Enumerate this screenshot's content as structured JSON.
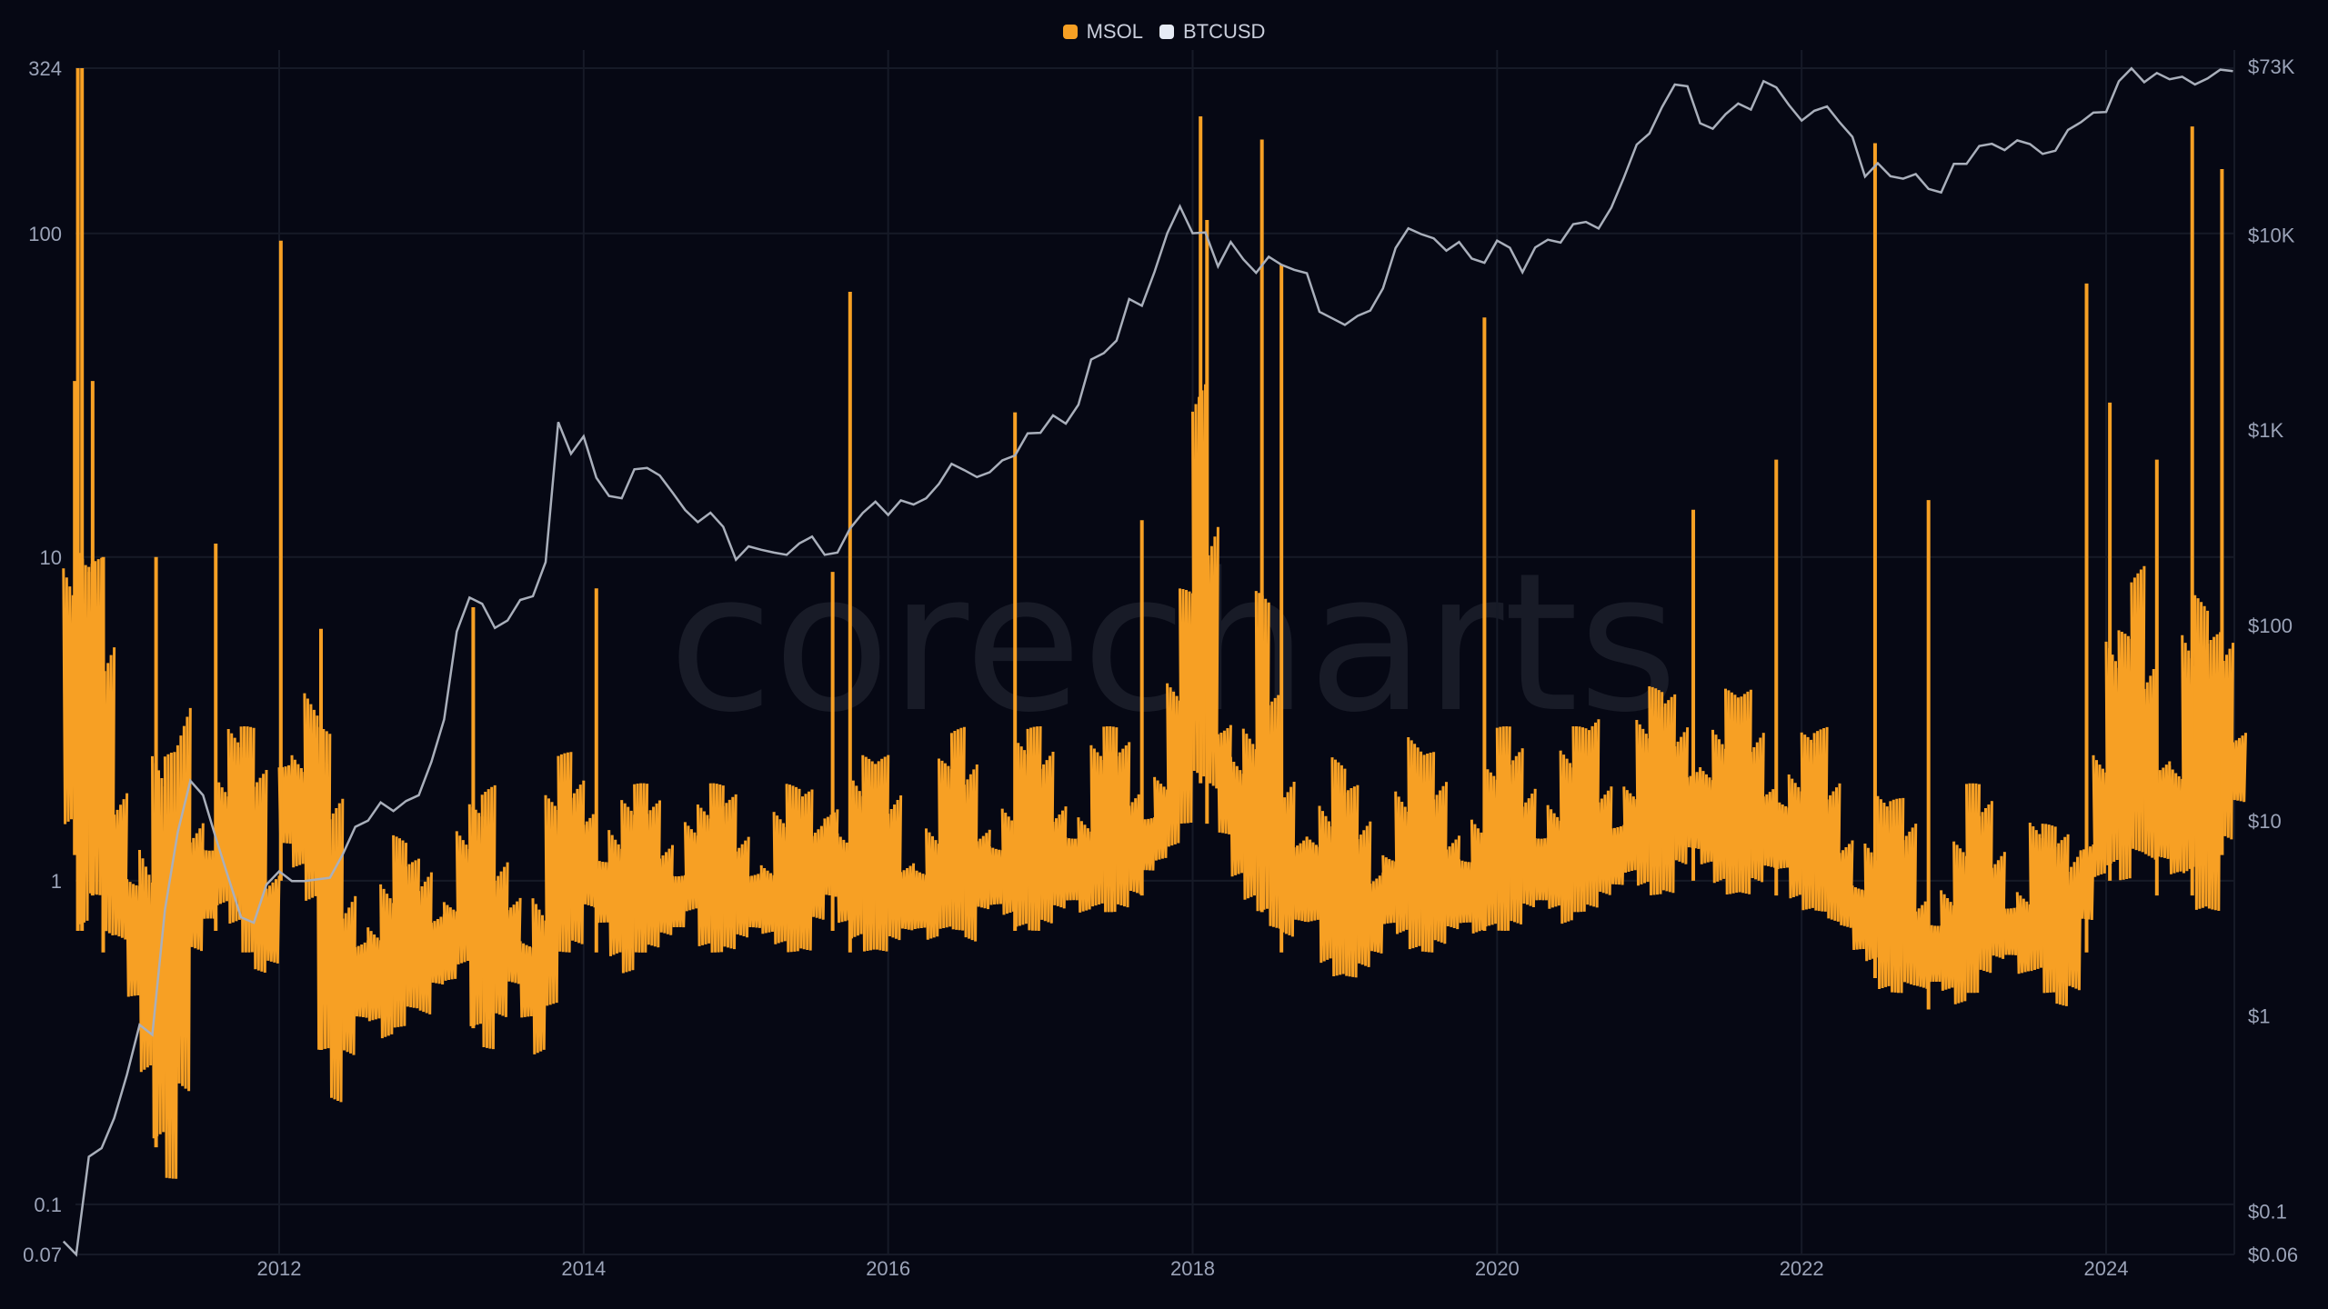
{
  "watermark": "corecharts",
  "chart_data": {
    "type": "line",
    "legend_position": "top-center",
    "grid": true,
    "colors": {
      "background": "#060814",
      "MSOL": "#f7a024",
      "BTCUSD": "#a9afbb",
      "grid": "#161a27"
    },
    "x_ticks": [
      "2012",
      "2014",
      "2016",
      "2018",
      "2020",
      "2022",
      "2024"
    ],
    "left_axis": {
      "scale": "log",
      "range": [
        0.07,
        324
      ],
      "ticks": [
        "324",
        "100",
        "10",
        "1",
        "0.1",
        "0.07"
      ],
      "tick_values": [
        324,
        100,
        10,
        1,
        0.1,
        0.07
      ]
    },
    "right_axis": {
      "scale": "log",
      "range": [
        0.06,
        73000
      ],
      "ticks": [
        "$73K",
        "$10K",
        "$1K",
        "$100",
        "$10",
        "$1",
        "$0.1",
        "$0.06"
      ],
      "tick_values": [
        73000,
        10000,
        1000,
        100,
        10,
        1,
        0.1,
        0.06
      ]
    },
    "series": [
      {
        "name": "MSOL",
        "axis": "left",
        "start_month": "2010-08",
        "monthly_high": [
          20,
          12,
          10,
          8,
          5,
          4,
          3,
          3,
          2.5,
          5,
          3,
          3,
          4,
          3.5,
          3,
          2.5,
          1.5,
          6,
          5,
          5,
          3,
          2,
          1.5,
          1.5,
          1.5,
          1.3,
          1.4,
          1.2,
          1.5,
          1.5,
          1.8,
          2,
          1.8,
          2,
          1.5,
          1.7,
          1.5,
          1.5,
          2,
          2.5,
          2.5,
          3,
          2.5,
          2.5,
          2,
          2,
          2,
          2,
          2,
          2.5,
          2,
          2,
          2,
          2,
          2,
          1.8,
          2,
          2,
          2,
          2,
          4,
          3,
          3,
          2.5,
          2.5,
          2.5,
          2,
          2,
          2,
          2.5,
          3,
          3,
          2.5,
          2.5,
          2.5,
          3,
          3,
          3,
          3,
          3,
          2.5,
          3,
          3,
          3,
          3,
          3,
          3.5,
          5,
          8,
          40,
          30,
          10,
          6,
          4,
          8,
          4,
          3,
          3,
          3,
          2.5,
          2.5,
          2,
          2,
          2,
          2.5,
          3,
          3,
          2.5,
          2.5,
          2.5,
          2.5,
          2.5,
          2.5,
          3,
          3,
          3.5,
          3,
          3,
          3,
          3,
          3.5,
          3,
          3,
          3.5,
          4,
          4,
          4,
          4.5,
          5,
          5,
          4,
          4,
          4,
          4,
          4,
          3.5,
          3,
          3,
          3,
          2.5,
          2.5,
          2,
          2,
          2,
          1.8,
          1.8,
          1.5,
          1.5,
          1.5,
          1.5,
          2,
          2,
          2,
          1.5,
          1.5,
          1.8,
          1.5,
          1.5,
          2,
          3,
          6,
          8,
          6,
          10,
          8,
          6,
          6,
          10,
          8,
          6,
          8,
          5
        ],
        "monthly_low": [
          1.2,
          0.7,
          0.9,
          0.6,
          0.5,
          0.3,
          0.2,
          0.15,
          0.12,
          0.2,
          0.5,
          0.6,
          0.7,
          0.7,
          0.6,
          0.5,
          0.5,
          1,
          0.9,
          0.8,
          0.3,
          0.2,
          0.25,
          0.3,
          0.3,
          0.3,
          0.35,
          0.4,
          0.35,
          0.4,
          0.4,
          0.5,
          0.35,
          0.3,
          0.35,
          0.4,
          0.3,
          0.25,
          0.4,
          0.6,
          0.6,
          0.7,
          0.6,
          0.5,
          0.5,
          0.6,
          0.6,
          0.6,
          0.6,
          0.7,
          0.6,
          0.6,
          0.6,
          0.6,
          0.6,
          0.6,
          0.6,
          0.6,
          0.6,
          0.7,
          0.7,
          0.6,
          0.6,
          0.6,
          0.6,
          0.6,
          0.6,
          0.6,
          0.6,
          0.7,
          0.7,
          0.6,
          0.7,
          0.7,
          0.7,
          0.7,
          0.7,
          0.7,
          0.7,
          0.7,
          0.7,
          0.8,
          0.8,
          0.8,
          0.8,
          0.9,
          1,
          1.2,
          1.5,
          2,
          1.5,
          1,
          0.8,
          0.8,
          0.8,
          0.7,
          0.6,
          0.6,
          0.6,
          0.5,
          0.5,
          0.5,
          0.5,
          0.5,
          0.6,
          0.6,
          0.6,
          0.6,
          0.6,
          0.6,
          0.6,
          0.6,
          0.7,
          0.7,
          0.7,
          0.7,
          0.7,
          0.7,
          0.7,
          0.8,
          0.8,
          0.8,
          0.8,
          0.9,
          0.9,
          0.9,
          0.9,
          1,
          1,
          0.9,
          0.9,
          0.9,
          0.9,
          0.9,
          0.9,
          0.9,
          0.8,
          0.8,
          0.8,
          0.7,
          0.6,
          0.5,
          0.5,
          0.45,
          0.45,
          0.45,
          0.4,
          0.4,
          0.4,
          0.4,
          0.45,
          0.5,
          0.5,
          0.5,
          0.45,
          0.5,
          0.45,
          0.4,
          0.4,
          0.6,
          0.8,
          1,
          1,
          1.2,
          1,
          0.9,
          0.8,
          0.9,
          0.8,
          0.8,
          1.2,
          1.5
        ],
        "spikes": [
          [
            "2010-08-28",
            35
          ],
          [
            "2010-09-05",
            324
          ],
          [
            "2010-09-15",
            324
          ],
          [
            "2010-10-10",
            35
          ],
          [
            "2010-11-05",
            10
          ],
          [
            "2011-03-10",
            10
          ],
          [
            "2011-08-01",
            11
          ],
          [
            "2012-01-05",
            95
          ],
          [
            "2012-04-10",
            6
          ],
          [
            "2013-04-10",
            7
          ],
          [
            "2014-02-01",
            8
          ],
          [
            "2015-08-20",
            9
          ],
          [
            "2015-10-01",
            66
          ],
          [
            "2016-11-01",
            28
          ],
          [
            "2017-09-01",
            13
          ],
          [
            "2018-01-20",
            230
          ],
          [
            "2018-02-05",
            110
          ],
          [
            "2018-06-15",
            195
          ],
          [
            "2018-08-01",
            80
          ],
          [
            "2019-12-01",
            55
          ],
          [
            "2021-04-15",
            14
          ],
          [
            "2021-11-01",
            20
          ],
          [
            "2022-06-25",
            190
          ],
          [
            "2022-11-01",
            15
          ],
          [
            "2023-11-15",
            70
          ],
          [
            "2024-01-10",
            30
          ],
          [
            "2024-05-01",
            20
          ],
          [
            "2024-07-25",
            214
          ],
          [
            "2024-10-05",
            158
          ]
        ]
      },
      {
        "name": "BTCUSD",
        "axis": "right",
        "start_month": "2010-08",
        "monthly_values": [
          0.07,
          0.06,
          0.19,
          0.21,
          0.3,
          0.5,
          0.9,
          0.8,
          3.5,
          8.7,
          16,
          13.5,
          8.2,
          5.1,
          3.2,
          3.0,
          4.7,
          5.5,
          4.9,
          4.9,
          5.0,
          5.1,
          6.7,
          9.3,
          10,
          12.4,
          11.2,
          12.6,
          13.5,
          20,
          33,
          93,
          139,
          129,
          97,
          106,
          135,
          141,
          211,
          1100,
          757,
          930,
          570,
          460,
          448,
          630,
          640,
          586,
          480,
          390,
          338,
          378,
          320,
          217,
          254,
          244,
          236,
          230,
          263,
          285,
          230,
          236,
          314,
          377,
          430,
          368,
          437,
          416,
          448,
          531,
          672,
          624,
          575,
          609,
          700,
          742,
          963,
          970,
          1190,
          1080,
          1350,
          2300,
          2480,
          2875,
          4700,
          4340,
          6470,
          10200,
          14000,
          10200,
          10300,
          6900,
          9200,
          7500,
          6400,
          7730,
          7030,
          6630,
          6370,
          4040,
          3740,
          3460,
          3850,
          4100,
          5320,
          8570,
          10800,
          10100,
          9600,
          8300,
          9200,
          7570,
          7200,
          9350,
          8600,
          6440,
          8630,
          9450,
          9140,
          11350,
          11650,
          10780,
          13800,
          19700,
          29000,
          33100,
          45200,
          58900,
          57700,
          37300,
          35000,
          41500,
          47100,
          43800,
          61300,
          57000,
          46300,
          38500,
          43200,
          45500,
          37700,
          31800,
          19900,
          23300,
          20000,
          19400,
          20500,
          17200,
          16500,
          23100,
          23100,
          28500,
          29300,
          27200,
          30500,
          29200,
          26000,
          27000,
          34500,
          37700,
          42300,
          42600,
          61200,
          71300,
          60600,
          67500,
          62700,
          64600,
          59000,
          63300,
          70200,
          69000
        ]
      }
    ]
  }
}
